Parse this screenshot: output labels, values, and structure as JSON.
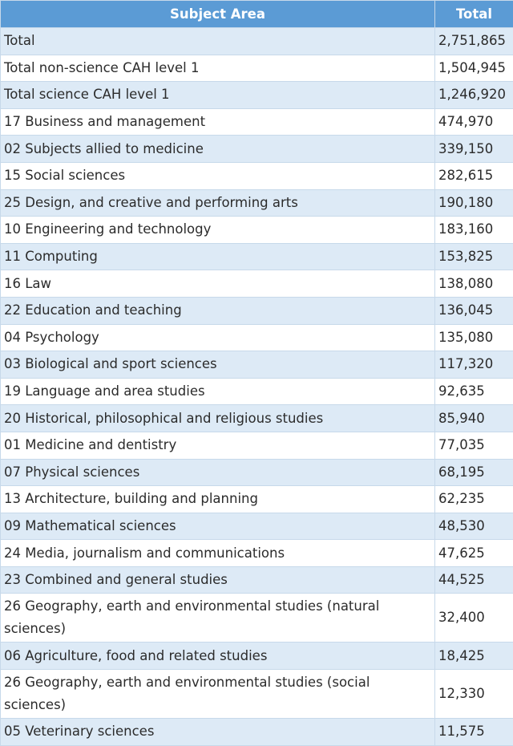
{
  "table": {
    "headers": [
      "Subject Area",
      "Total"
    ],
    "rows": [
      {
        "subject": "Total",
        "total": "2,751,865"
      },
      {
        "subject": "Total non-science CAH level 1",
        "total": "1,504,945"
      },
      {
        "subject": "Total science CAH level 1",
        "total": "1,246,920"
      },
      {
        "subject": "17 Business and management",
        "total": "474,970"
      },
      {
        "subject": "02 Subjects allied to medicine",
        "total": "339,150"
      },
      {
        "subject": "15 Social sciences",
        "total": "282,615"
      },
      {
        "subject": "25 Design, and creative and performing arts",
        "total": "190,180"
      },
      {
        "subject": "10 Engineering and technology",
        "total": "183,160"
      },
      {
        "subject": "11 Computing",
        "total": "153,825"
      },
      {
        "subject": "16 Law",
        "total": "138,080"
      },
      {
        "subject": "22 Education and teaching",
        "total": "136,045"
      },
      {
        "subject": "04 Psychology",
        "total": "135,080"
      },
      {
        "subject": "03 Biological and sport sciences",
        "total": "117,320"
      },
      {
        "subject": "19 Language and area studies",
        "total": "92,635"
      },
      {
        "subject": "20 Historical, philosophical and religious studies",
        "total": "85,940"
      },
      {
        "subject": "01 Medicine and dentistry",
        "total": "77,035"
      },
      {
        "subject": "07 Physical sciences",
        "total": "68,195"
      },
      {
        "subject": "13 Architecture, building and planning",
        "total": "62,235"
      },
      {
        "subject": "09 Mathematical sciences",
        "total": "48,530"
      },
      {
        "subject": "24 Media, journalism and communications",
        "total": "47,625"
      },
      {
        "subject": "23 Combined and general studies",
        "total": "44,525"
      },
      {
        "subject": "26 Geography, earth and environmental studies (natural sciences)",
        "total": "32,400"
      },
      {
        "subject": "06 Agriculture, food and related studies",
        "total": "18,425"
      },
      {
        "subject": "26 Geography, earth and environmental studies (social sciences)",
        "total": "12,330"
      },
      {
        "subject": "05 Veterinary sciences",
        "total": "11,575"
      }
    ]
  },
  "colors": {
    "header_bg": "#5b9bd5",
    "header_text": "#ffffff",
    "stripe": "#ddeaf6",
    "border": "#c7d9ea"
  }
}
